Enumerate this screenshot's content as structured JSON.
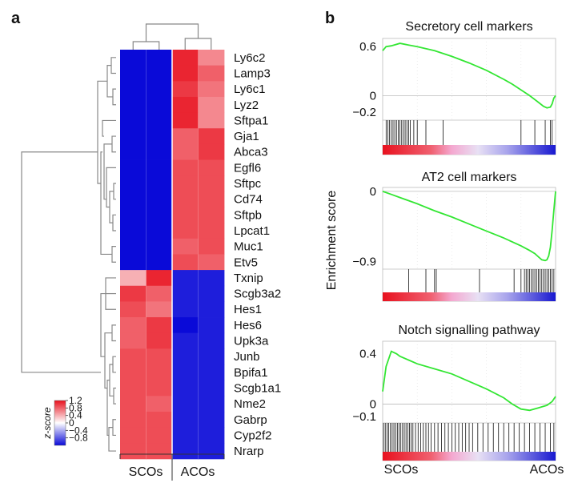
{
  "panels": {
    "a": "a",
    "b": "b"
  },
  "heatmap": {
    "genes": [
      "Ly6c2",
      "Lamp3",
      "Ly6c1",
      "Lyz2",
      "Sftpa1",
      "Gja1",
      "Abca3",
      "Egfl6",
      "Sftpc",
      "Cd74",
      "Sftpb",
      "Lpcat1",
      "Muc1",
      "Etv5",
      "Txnip",
      "Scgb3a2",
      "Hes1",
      "Hes6",
      "Upk3a",
      "Junb",
      "Bpifa1",
      "Scgb1a1",
      "Nme2",
      "Gabrp",
      "Cyp2f2",
      "Nrarp"
    ],
    "groups": [
      "SCOs",
      "ACOs"
    ],
    "colors": {
      "low": "#0a0ad8",
      "mid": "#ffffff",
      "high": "#e8111e"
    },
    "values": [
      [
        -1.2,
        -1.2,
        1.1,
        0.6
      ],
      [
        -1.2,
        -1.2,
        1.1,
        0.8
      ],
      [
        -1.2,
        -1.2,
        1.0,
        0.7
      ],
      [
        -1.2,
        -1.2,
        1.1,
        0.6
      ],
      [
        -1.2,
        -1.2,
        1.1,
        0.6
      ],
      [
        -1.2,
        -1.2,
        0.8,
        1.0
      ],
      [
        -1.2,
        -1.2,
        0.8,
        1.0
      ],
      [
        -1.2,
        -1.2,
        0.9,
        0.9
      ],
      [
        -1.2,
        -1.2,
        0.9,
        0.9
      ],
      [
        -1.2,
        -1.2,
        0.9,
        0.9
      ],
      [
        -1.2,
        -1.2,
        0.9,
        0.9
      ],
      [
        -1.2,
        -1.2,
        0.9,
        0.9
      ],
      [
        -1.2,
        -1.2,
        0.8,
        0.9
      ],
      [
        -1.2,
        -1.2,
        0.9,
        0.8
      ],
      [
        0.4,
        1.1,
        -1.1,
        -1.1
      ],
      [
        1.0,
        0.8,
        -1.1,
        -1.1
      ],
      [
        0.9,
        0.7,
        -1.1,
        -1.1
      ],
      [
        0.8,
        1.0,
        -1.2,
        -1.1
      ],
      [
        0.8,
        1.0,
        -1.1,
        -1.1
      ],
      [
        0.9,
        0.9,
        -1.1,
        -1.1
      ],
      [
        0.9,
        0.9,
        -1.1,
        -1.1
      ],
      [
        0.9,
        0.9,
        -1.1,
        -1.1
      ],
      [
        0.9,
        0.8,
        -1.1,
        -1.1
      ],
      [
        0.9,
        0.9,
        -1.1,
        -1.1
      ],
      [
        0.9,
        0.9,
        -1.1,
        -1.1
      ],
      [
        0.9,
        0.9,
        -1.1,
        -1.1
      ]
    ],
    "legend": {
      "label": "z-score",
      "ticks": [
        "1.2",
        "0.8",
        "0.4",
        "0",
        "−0.4",
        "−0.8"
      ],
      "tick_values": [
        1.2,
        0.8,
        0.4,
        0,
        -0.4,
        -0.8
      ],
      "range": [
        -1.2,
        1.2
      ]
    }
  },
  "chart_data": [
    {
      "type": "line",
      "title": "Secretory cell markers",
      "ylabel": "",
      "ylim": [
        -0.3,
        0.7
      ],
      "yticks": [
        0.6,
        0,
        -0.2
      ],
      "ytick_labels": [
        "0.6",
        "0",
        "−0.2"
      ],
      "xlim": [
        0,
        1
      ],
      "line_color": "#33e633",
      "series": [
        {
          "x": [
            0,
            0.02,
            0.05,
            0.1,
            0.15,
            0.2,
            0.3,
            0.4,
            0.5,
            0.6,
            0.7,
            0.75,
            0.8,
            0.85,
            0.9,
            0.93,
            0.95,
            0.97,
            0.98,
            0.99,
            1.0
          ],
          "y": [
            0.55,
            0.6,
            0.61,
            0.64,
            0.62,
            0.6,
            0.55,
            0.48,
            0.4,
            0.31,
            0.2,
            0.14,
            0.07,
            0.0,
            -0.08,
            -0.13,
            -0.15,
            -0.14,
            -0.1,
            -0.03,
            0.0
          ]
        }
      ],
      "hits": [
        0.02,
        0.03,
        0.04,
        0.05,
        0.06,
        0.07,
        0.08,
        0.09,
        0.1,
        0.11,
        0.12,
        0.13,
        0.14,
        0.15,
        0.16,
        0.18,
        0.2,
        0.25,
        0.35,
        0.8,
        0.88,
        0.94,
        0.97,
        0.98
      ]
    },
    {
      "type": "line",
      "title": "AT2 cell markers",
      "ylabel": "Enrichment score",
      "ylim": [
        -1.0,
        0.05
      ],
      "yticks": [
        0,
        -0.9
      ],
      "ytick_labels": [
        "0",
        "−0.9"
      ],
      "xlim": [
        0,
        1
      ],
      "line_color": "#33e633",
      "series": [
        {
          "x": [
            0,
            0.05,
            0.1,
            0.2,
            0.3,
            0.4,
            0.5,
            0.6,
            0.7,
            0.8,
            0.85,
            0.88,
            0.9,
            0.92,
            0.94,
            0.95,
            0.96,
            0.97,
            0.98,
            0.99,
            1.0
          ],
          "y": [
            0,
            -0.04,
            -0.08,
            -0.16,
            -0.25,
            -0.33,
            -0.42,
            -0.51,
            -0.6,
            -0.7,
            -0.76,
            -0.8,
            -0.84,
            -0.88,
            -0.89,
            -0.88,
            -0.83,
            -0.72,
            -0.5,
            -0.25,
            0.0
          ]
        }
      ],
      "hits": [
        0.15,
        0.25,
        0.3,
        0.31,
        0.56,
        0.76,
        0.8,
        0.82,
        0.83,
        0.84,
        0.85,
        0.86,
        0.87,
        0.88,
        0.89,
        0.9,
        0.91,
        0.92,
        0.93,
        0.94,
        0.95,
        0.96,
        0.97,
        0.98,
        0.99
      ]
    },
    {
      "type": "line",
      "title": "Notch signalling pathway",
      "ylabel": "",
      "ylim": [
        -0.15,
        0.5
      ],
      "yticks": [
        0.4,
        0,
        -0.1
      ],
      "ytick_labels": [
        "0.4",
        "0",
        "−0.1"
      ],
      "xlim": [
        0,
        1
      ],
      "line_color": "#33e633",
      "series": [
        {
          "x": [
            0,
            0.02,
            0.05,
            0.08,
            0.1,
            0.15,
            0.2,
            0.3,
            0.4,
            0.5,
            0.6,
            0.7,
            0.75,
            0.8,
            0.85,
            0.9,
            0.95,
            0.98,
            1.0
          ],
          "y": [
            0.1,
            0.3,
            0.42,
            0.4,
            0.38,
            0.35,
            0.32,
            0.28,
            0.24,
            0.18,
            0.12,
            0.05,
            0.0,
            -0.04,
            -0.05,
            -0.03,
            -0.01,
            0.02,
            0.06
          ]
        }
      ],
      "hits": [
        0.005,
        0.015,
        0.025,
        0.035,
        0.045,
        0.055,
        0.065,
        0.075,
        0.085,
        0.095,
        0.105,
        0.115,
        0.125,
        0.135,
        0.145,
        0.155,
        0.165,
        0.175,
        0.19,
        0.205,
        0.22,
        0.235,
        0.25,
        0.265,
        0.28,
        0.3,
        0.32,
        0.34,
        0.36,
        0.38,
        0.4,
        0.42,
        0.44,
        0.46,
        0.48,
        0.5,
        0.52,
        0.55,
        0.58,
        0.61,
        0.64,
        0.67,
        0.7,
        0.73,
        0.76,
        0.79,
        0.82,
        0.85,
        0.88,
        0.91,
        0.94,
        0.97,
        0.99
      ]
    }
  ],
  "gsea_x_labels": [
    "SCOs",
    "ACOs"
  ],
  "rank_bar_colors": [
    "#e8111e",
    "#f080b0",
    "#d8d0f0",
    "#2020d8"
  ]
}
